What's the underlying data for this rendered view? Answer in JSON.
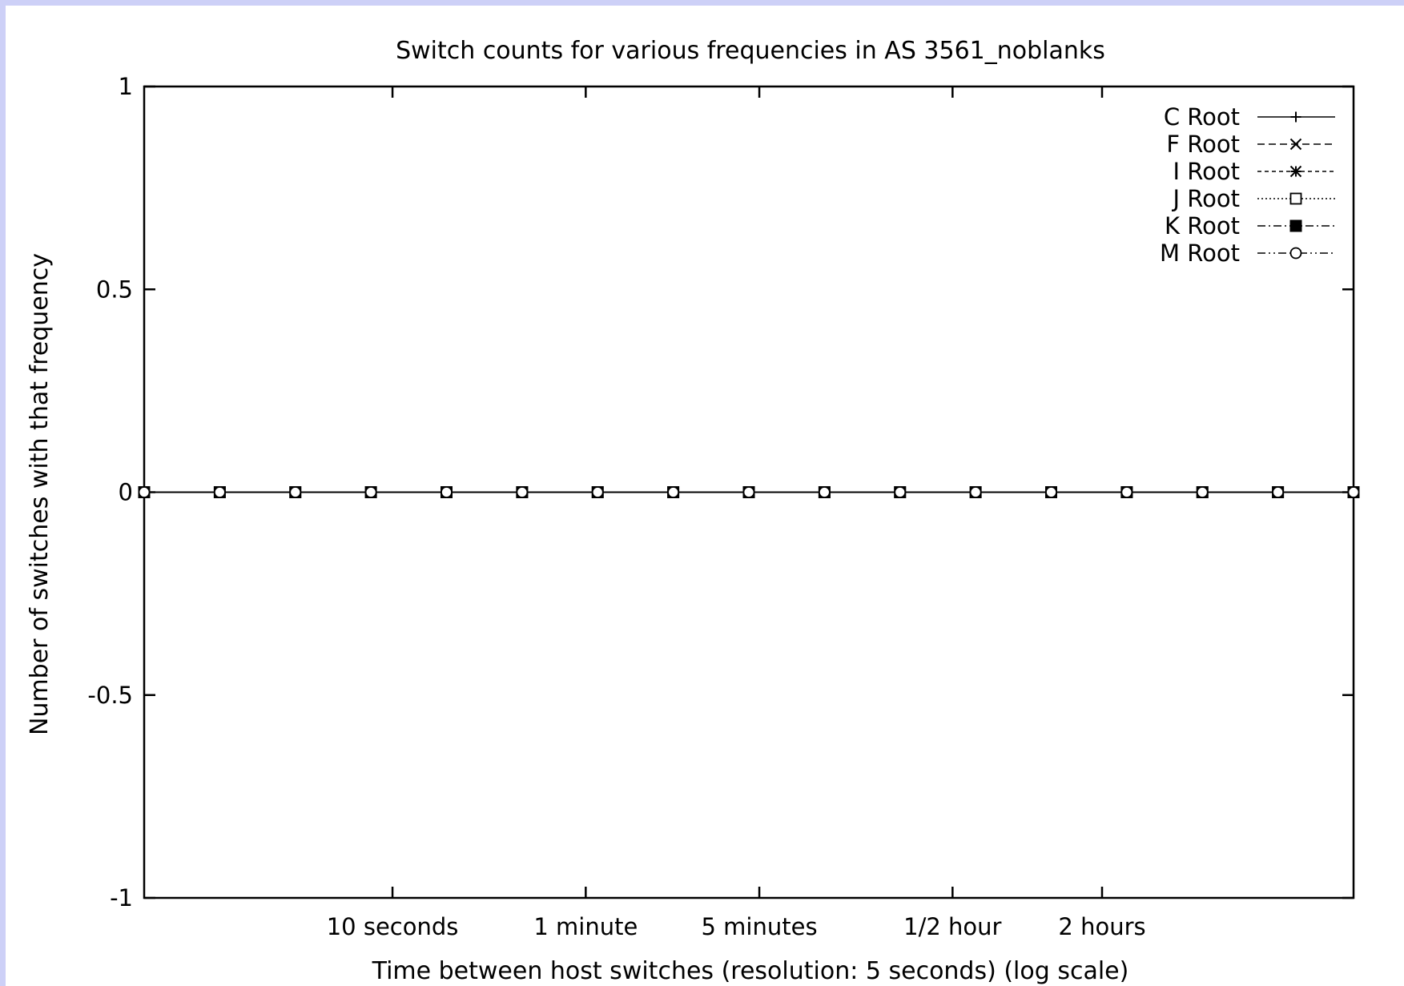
{
  "chart_data": {
    "type": "line",
    "title": "Switch counts for various frequencies in AS 3561_noblanks",
    "xlabel": "Time between host switches (resolution: 5 seconds) (log scale)",
    "ylabel": "Number of switches with that frequency",
    "x_scale": "log",
    "ylim": [
      -1,
      1
    ],
    "y_ticks": [
      {
        "value": 1,
        "label": "1"
      },
      {
        "value": 0.5,
        "label": "0.5"
      },
      {
        "value": 0,
        "label": "0"
      },
      {
        "value": -0.5,
        "label": "-0.5"
      },
      {
        "value": -1,
        "label": "-1"
      }
    ],
    "x_ticks": [
      {
        "seconds": 10,
        "label": "10 seconds"
      },
      {
        "seconds": 60,
        "label": "1 minute"
      },
      {
        "seconds": 300,
        "label": "5 minutes"
      },
      {
        "seconds": 1800,
        "label": "1/2 hour"
      },
      {
        "seconds": 7200,
        "label": "2 hours"
      }
    ],
    "grid": false,
    "legend_position": "top-right",
    "series": [
      {
        "name": "C Root",
        "marker": "plus",
        "dash": "solid",
        "values": [
          0,
          0,
          0,
          0,
          0,
          0,
          0,
          0,
          0,
          0,
          0,
          0,
          0,
          0,
          0,
          0,
          0
        ]
      },
      {
        "name": "F Root",
        "marker": "cross",
        "dash": "dashed",
        "values": [
          0,
          0,
          0,
          0,
          0,
          0,
          0,
          0,
          0,
          0,
          0,
          0,
          0,
          0,
          0,
          0,
          0
        ]
      },
      {
        "name": "I Root",
        "marker": "star",
        "dash": "short-dashed",
        "values": [
          0,
          0,
          0,
          0,
          0,
          0,
          0,
          0,
          0,
          0,
          0,
          0,
          0,
          0,
          0,
          0,
          0
        ]
      },
      {
        "name": "J Root",
        "marker": "open-square",
        "dash": "dotted",
        "values": [
          0,
          0,
          0,
          0,
          0,
          0,
          0,
          0,
          0,
          0,
          0,
          0,
          0,
          0,
          0,
          0,
          0
        ]
      },
      {
        "name": "K Root",
        "marker": "filled-square",
        "dash": "dash-dot",
        "values": [
          0,
          0,
          0,
          0,
          0,
          0,
          0,
          0,
          0,
          0,
          0,
          0,
          0,
          0,
          0,
          0,
          0
        ]
      },
      {
        "name": "M Root",
        "marker": "open-circle",
        "dash": "dash-dot-dot",
        "values": [
          0,
          0,
          0,
          0,
          0,
          0,
          0,
          0,
          0,
          0,
          0,
          0,
          0,
          0,
          0,
          0,
          0
        ]
      }
    ]
  },
  "colors": {
    "page_background": "#cdd0f7",
    "plot_background": "#ffffff",
    "ink": "#000000"
  }
}
